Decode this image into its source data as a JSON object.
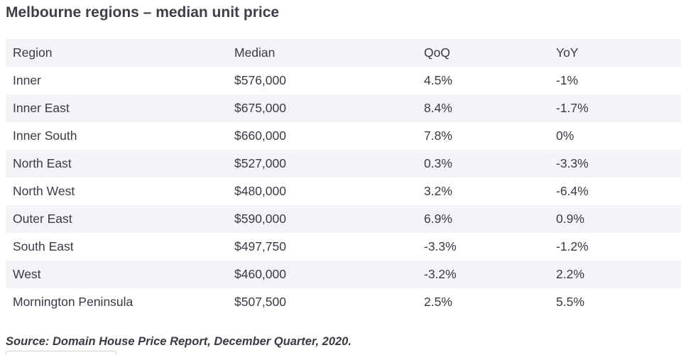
{
  "title": "Melbourne regions – median unit price",
  "table": {
    "headers": [
      "Region",
      "Median",
      "QoQ",
      "YoY"
    ],
    "rows": [
      [
        "Inner",
        "$576,000",
        "4.5%",
        "-1%"
      ],
      [
        "Inner East",
        "$675,000",
        "8.4%",
        "-1.7%"
      ],
      [
        "Inner South",
        "$660,000",
        "7.8%",
        "0%"
      ],
      [
        "North East",
        "$527,000",
        "0.3%",
        "-3.3%"
      ],
      [
        "North West",
        "$480,000",
        "3.2%",
        "-6.4%"
      ],
      [
        "Outer East",
        "$590,000",
        "6.9%",
        "0.9%"
      ],
      [
        "South East",
        "$497,750",
        "-3.3%",
        "-1.2%"
      ],
      [
        "West",
        "$460,000",
        "-3.2%",
        "2.2%"
      ],
      [
        "Mornington Peninsula",
        "$507,500",
        "2.5%",
        "5.5%"
      ]
    ]
  },
  "source": "Source: Domain House Price Report, December Quarter, 2020."
}
